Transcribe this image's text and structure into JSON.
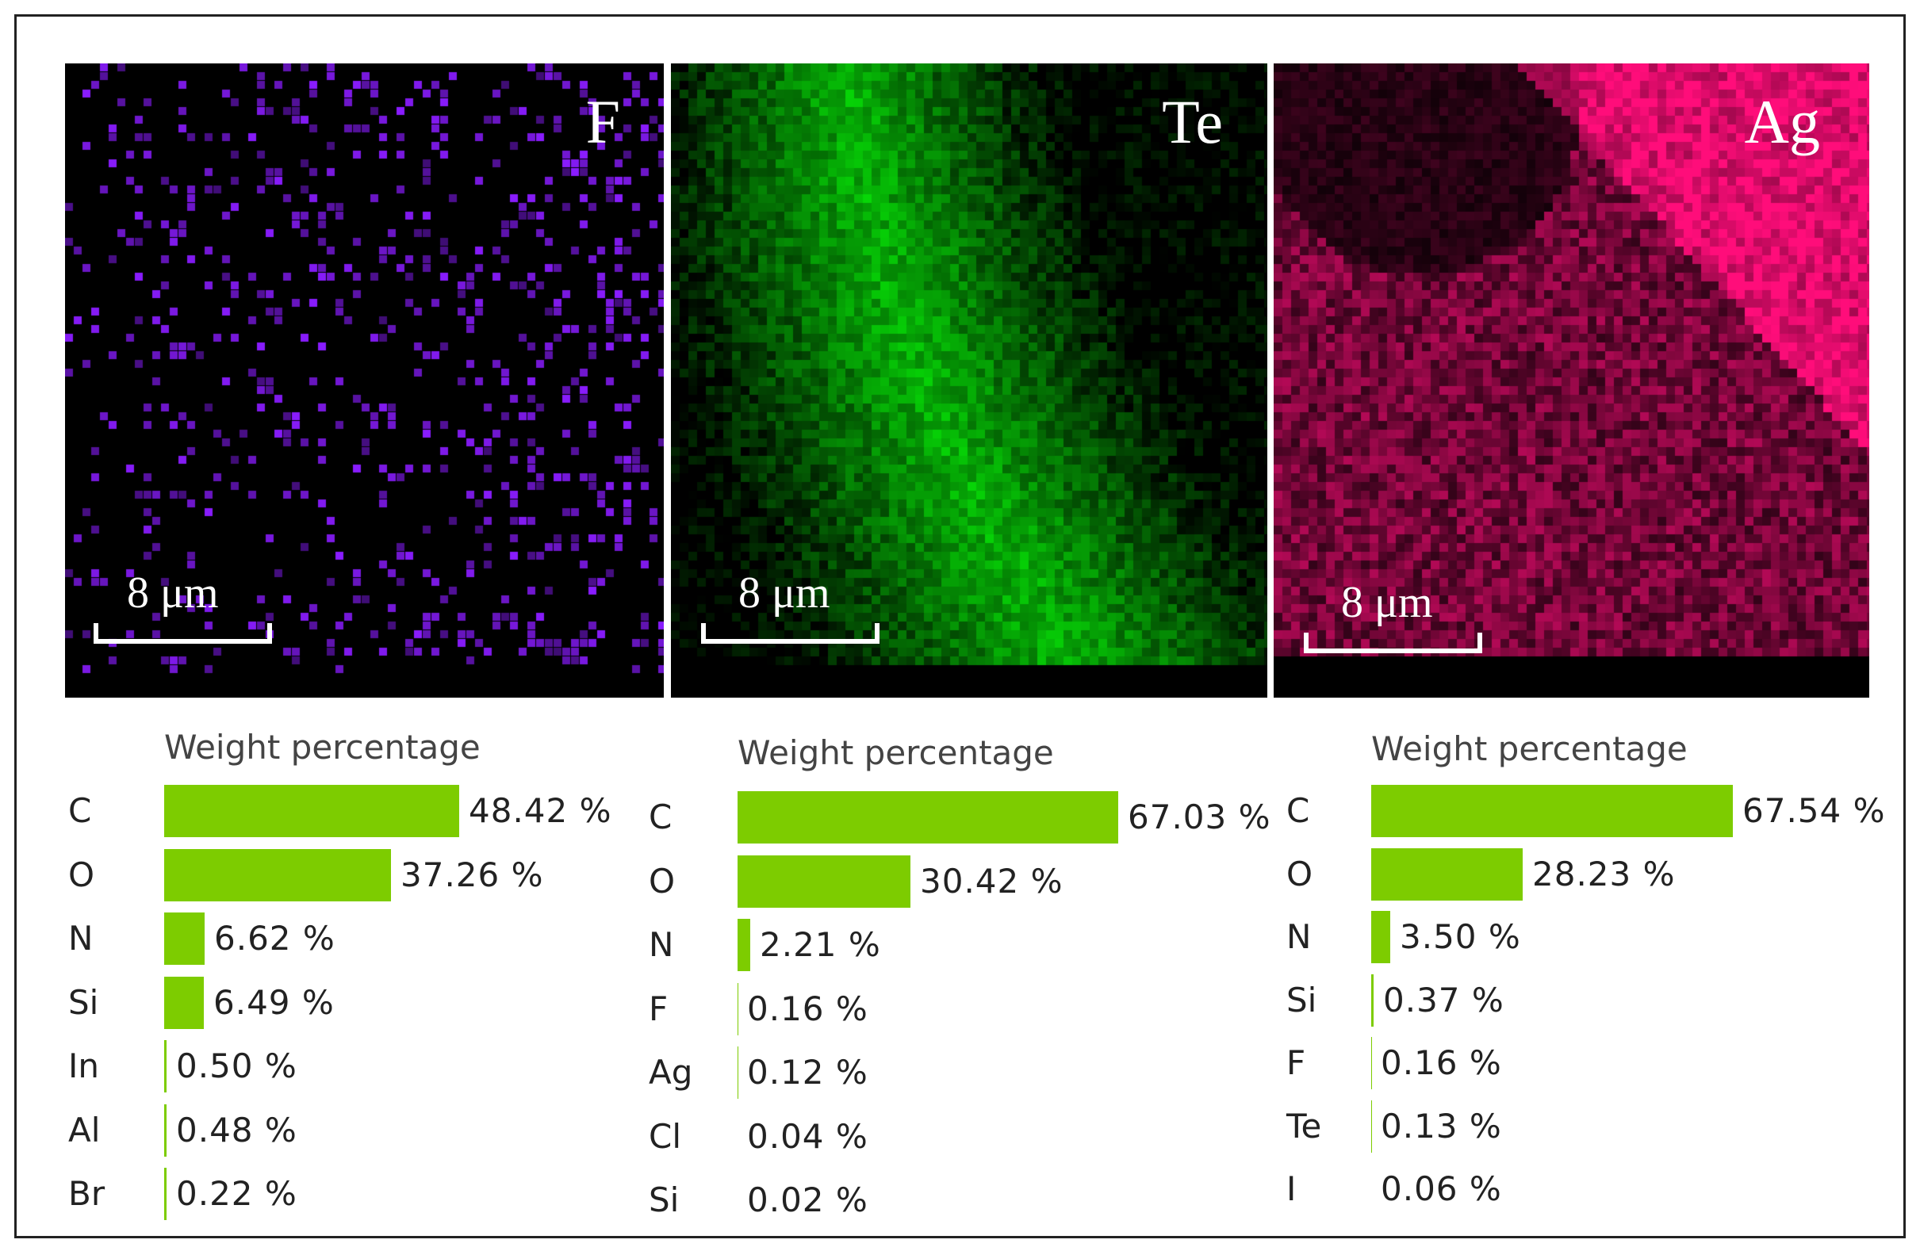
{
  "colors": {
    "F": "#8a1cff",
    "Te": "#22dd22",
    "Ag": "#ff1a7a",
    "bar": "#7dcc00"
  },
  "maps": [
    {
      "element": "F",
      "scale": "8 μm"
    },
    {
      "element": "Te",
      "scale": "8 μm"
    },
    {
      "element": "Ag",
      "scale": "8 μm"
    }
  ],
  "chart_data": [
    {
      "type": "bar",
      "title": "Weight percentage",
      "categories": [
        "C",
        "O",
        "N",
        "Si",
        "In",
        "Al",
        "Br"
      ],
      "values": [
        48.42,
        37.26,
        6.62,
        6.49,
        0.5,
        0.48,
        0.22
      ],
      "labels": [
        "48.42 %",
        "37.26 %",
        "6.62 %",
        "6.49 %",
        "0.50 %",
        "0.48 %",
        "0.22 %"
      ]
    },
    {
      "type": "bar",
      "title": "Weight percentage",
      "categories": [
        "C",
        "O",
        "N",
        "F",
        "Ag",
        "Cl",
        "Si"
      ],
      "values": [
        67.03,
        30.42,
        2.21,
        0.16,
        0.12,
        0.04,
        0.02
      ],
      "labels": [
        "67.03 %",
        "30.42 %",
        "2.21 %",
        "0.16 %",
        "0.12 %",
        "0.04 %",
        "0.02 %"
      ]
    },
    {
      "type": "bar",
      "title": "Weight percentage",
      "categories": [
        "C",
        "O",
        "N",
        "Si",
        "F",
        "Te",
        "I"
      ],
      "values": [
        67.54,
        28.23,
        3.5,
        0.37,
        0.16,
        0.13,
        0.06
      ],
      "labels": [
        "67.54 %",
        "28.23 %",
        "3.50 %",
        "0.37 %",
        "0.16 %",
        "0.13 %",
        "0.06 %"
      ]
    }
  ]
}
